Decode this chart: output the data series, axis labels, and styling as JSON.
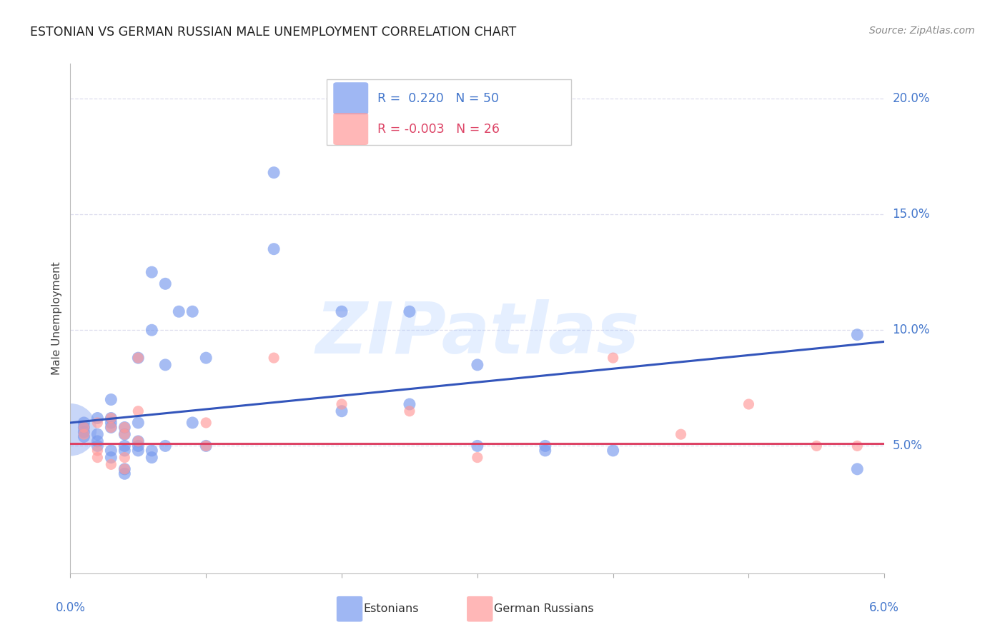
{
  "title": "ESTONIAN VS GERMAN RUSSIAN MALE UNEMPLOYMENT CORRELATION CHART",
  "source": "Source: ZipAtlas.com",
  "ylabel": "Male Unemployment",
  "watermark": "ZIPatlas",
  "xlim": [
    0.0,
    0.06
  ],
  "ylim": [
    -0.005,
    0.215
  ],
  "yticks": [
    0.05,
    0.1,
    0.15,
    0.2
  ],
  "ytick_labels": [
    "5.0%",
    "10.0%",
    "15.0%",
    "20.0%"
  ],
  "xtick_labels": [
    "0.0%",
    "",
    "",
    "",
    "",
    "",
    "6.0%"
  ],
  "xticks": [
    0.0,
    0.01,
    0.02,
    0.03,
    0.04,
    0.05,
    0.06
  ],
  "legend_blue_r": "0.220",
  "legend_blue_n": "50",
  "legend_pink_r": "-0.003",
  "legend_pink_n": "26",
  "blue_color": "#7799ee",
  "pink_color": "#ff9999",
  "blue_line_color": "#3355bb",
  "pink_line_color": "#dd4466",
  "axis_color": "#4477cc",
  "grid_color": "#ddddee",
  "title_color": "#222222",
  "source_color": "#888888",
  "blue_points": [
    [
      0.001,
      0.058
    ],
    [
      0.001,
      0.056
    ],
    [
      0.001,
      0.054
    ],
    [
      0.001,
      0.06
    ],
    [
      0.002,
      0.062
    ],
    [
      0.002,
      0.055
    ],
    [
      0.002,
      0.05
    ],
    [
      0.002,
      0.052
    ],
    [
      0.003,
      0.058
    ],
    [
      0.003,
      0.048
    ],
    [
      0.003,
      0.045
    ],
    [
      0.003,
      0.06
    ],
    [
      0.003,
      0.062
    ],
    [
      0.003,
      0.07
    ],
    [
      0.004,
      0.058
    ],
    [
      0.004,
      0.055
    ],
    [
      0.004,
      0.05
    ],
    [
      0.004,
      0.048
    ],
    [
      0.004,
      0.04
    ],
    [
      0.004,
      0.038
    ],
    [
      0.005,
      0.088
    ],
    [
      0.005,
      0.06
    ],
    [
      0.005,
      0.052
    ],
    [
      0.005,
      0.05
    ],
    [
      0.005,
      0.048
    ],
    [
      0.006,
      0.125
    ],
    [
      0.006,
      0.1
    ],
    [
      0.006,
      0.048
    ],
    [
      0.006,
      0.045
    ],
    [
      0.007,
      0.12
    ],
    [
      0.007,
      0.085
    ],
    [
      0.007,
      0.05
    ],
    [
      0.008,
      0.108
    ],
    [
      0.009,
      0.108
    ],
    [
      0.009,
      0.06
    ],
    [
      0.01,
      0.088
    ],
    [
      0.01,
      0.05
    ],
    [
      0.015,
      0.168
    ],
    [
      0.015,
      0.135
    ],
    [
      0.02,
      0.108
    ],
    [
      0.02,
      0.065
    ],
    [
      0.025,
      0.108
    ],
    [
      0.025,
      0.068
    ],
    [
      0.03,
      0.085
    ],
    [
      0.03,
      0.05
    ],
    [
      0.035,
      0.05
    ],
    [
      0.035,
      0.048
    ],
    [
      0.04,
      0.048
    ],
    [
      0.058,
      0.098
    ],
    [
      0.058,
      0.04
    ]
  ],
  "pink_points": [
    [
      0.001,
      0.058
    ],
    [
      0.001,
      0.055
    ],
    [
      0.002,
      0.06
    ],
    [
      0.002,
      0.048
    ],
    [
      0.002,
      0.045
    ],
    [
      0.003,
      0.062
    ],
    [
      0.003,
      0.058
    ],
    [
      0.003,
      0.042
    ],
    [
      0.004,
      0.058
    ],
    [
      0.004,
      0.055
    ],
    [
      0.004,
      0.045
    ],
    [
      0.004,
      0.04
    ],
    [
      0.005,
      0.088
    ],
    [
      0.005,
      0.065
    ],
    [
      0.005,
      0.052
    ],
    [
      0.01,
      0.06
    ],
    [
      0.01,
      0.05
    ],
    [
      0.015,
      0.088
    ],
    [
      0.02,
      0.068
    ],
    [
      0.025,
      0.065
    ],
    [
      0.03,
      0.045
    ],
    [
      0.04,
      0.088
    ],
    [
      0.045,
      0.055
    ],
    [
      0.05,
      0.068
    ],
    [
      0.055,
      0.05
    ],
    [
      0.058,
      0.05
    ]
  ],
  "blue_marker_size": 150,
  "pink_marker_size": 120,
  "big_blue_size": 2800,
  "blue_regression": [
    0.0,
    0.06,
    0.06,
    0.095
  ],
  "pink_regression": [
    0.0,
    0.051,
    0.06,
    0.051
  ]
}
